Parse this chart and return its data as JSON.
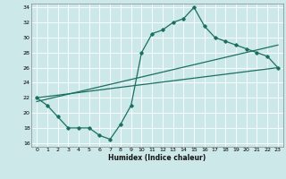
{
  "xlabel": "Humidex (Indice chaleur)",
  "bg_color": "#cce8e8",
  "grid_color": "#ffffff",
  "line_color": "#1a7060",
  "xlim": [
    -0.5,
    23.5
  ],
  "ylim": [
    15.5,
    34.5
  ],
  "yticks": [
    16,
    18,
    20,
    22,
    24,
    26,
    28,
    30,
    32,
    34
  ],
  "xticks": [
    0,
    1,
    2,
    3,
    4,
    5,
    6,
    7,
    8,
    9,
    10,
    11,
    12,
    13,
    14,
    15,
    16,
    17,
    18,
    19,
    20,
    21,
    22,
    23
  ],
  "hours": [
    0,
    1,
    2,
    3,
    4,
    5,
    6,
    7,
    8,
    9,
    10,
    11,
    12,
    13,
    14,
    15,
    16,
    17,
    18,
    19,
    20,
    21,
    22,
    23
  ],
  "line1": [
    22,
    21,
    19.5,
    18,
    18,
    18,
    17,
    16.5,
    18.5,
    21,
    28,
    30.5,
    31,
    32,
    32.5,
    34,
    31.5,
    30,
    29.5,
    29,
    28.5,
    28,
    27.5,
    26
  ],
  "line2_x": [
    0,
    23
  ],
  "line2_y": [
    22,
    26
  ],
  "line3_x": [
    0,
    23
  ],
  "line3_y": [
    21.5,
    29
  ]
}
